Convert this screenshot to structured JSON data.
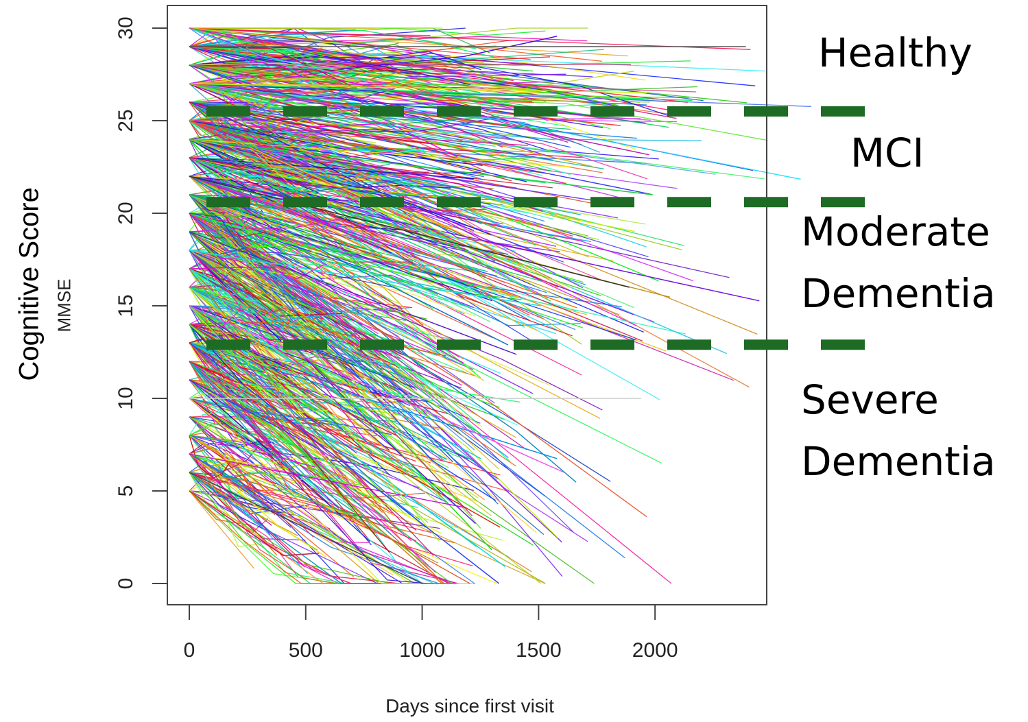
{
  "chart_data": {
    "type": "line",
    "xlabel": "Days since first visit",
    "ylabel_outer": "Cognitive Score",
    "ylabel": "MMSE",
    "xlim": [
      0,
      2400
    ],
    "ylim": [
      0,
      30
    ],
    "xticks": [
      "0",
      "500",
      "1000",
      "1500",
      "2000"
    ],
    "yticks": [
      "0",
      "5",
      "10",
      "15",
      "20",
      "25",
      "30"
    ],
    "thresholds": [
      25.5,
      20.6,
      12.9
    ],
    "threshold_color": "#1e6b25",
    "bands": {
      "healthy": "Healthy",
      "mci": "MCI",
      "moderate_line1": "Moderate",
      "moderate_line2": "Dementia",
      "severe_line1": "Severe",
      "severe_line2": "Dementia"
    },
    "series_note": "hundreds of individual patient trajectories, each a distinct color",
    "series_examples": [
      {
        "x": [
          0,
          1890
        ],
        "y": [
          22,
          16
        ]
      },
      {
        "x": [
          0,
          1940
        ],
        "y": [
          10,
          10
        ]
      },
      {
        "x": [
          0,
          1330
        ],
        "y": [
          13,
          0
        ]
      },
      {
        "x": [
          0,
          2390
        ],
        "y": [
          29,
          29
        ]
      },
      {
        "x": [
          0,
          1610
        ],
        "y": [
          15,
          6
        ]
      },
      {
        "x": [
          0,
          1510
        ],
        "y": [
          18,
          15
        ]
      },
      {
        "x": [
          0,
          1990
        ],
        "y": [
          24,
          21
        ]
      },
      {
        "x": [
          0,
          1000
        ],
        "y": [
          6,
          0
        ]
      }
    ]
  }
}
